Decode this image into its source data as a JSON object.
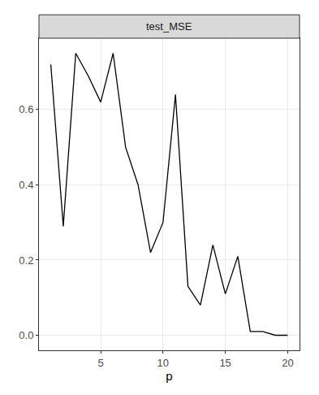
{
  "chart_data": {
    "type": "line",
    "title": "test_MSE",
    "x_label": "p",
    "x": [
      1,
      2,
      3,
      4,
      5,
      6,
      7,
      8,
      9,
      10,
      11,
      12,
      13,
      14,
      15,
      16,
      17,
      18,
      19,
      20
    ],
    "values": [
      0.72,
      0.29,
      0.75,
      0.69,
      0.62,
      0.75,
      0.5,
      0.4,
      0.22,
      0.3,
      0.64,
      0.13,
      0.08,
      0.24,
      0.11,
      0.21,
      0.01,
      0.01,
      0.0,
      0.0
    ],
    "color": "#000000",
    "xlim": [
      0.05,
      20.95
    ],
    "xticks": [
      5,
      10,
      15,
      20
    ],
    "ylim": [
      -0.04,
      0.79
    ],
    "yticks": [
      {
        "value": 0,
        "label": "0.0"
      },
      0.2,
      0.4,
      0.6
    ],
    "grid": true
  }
}
